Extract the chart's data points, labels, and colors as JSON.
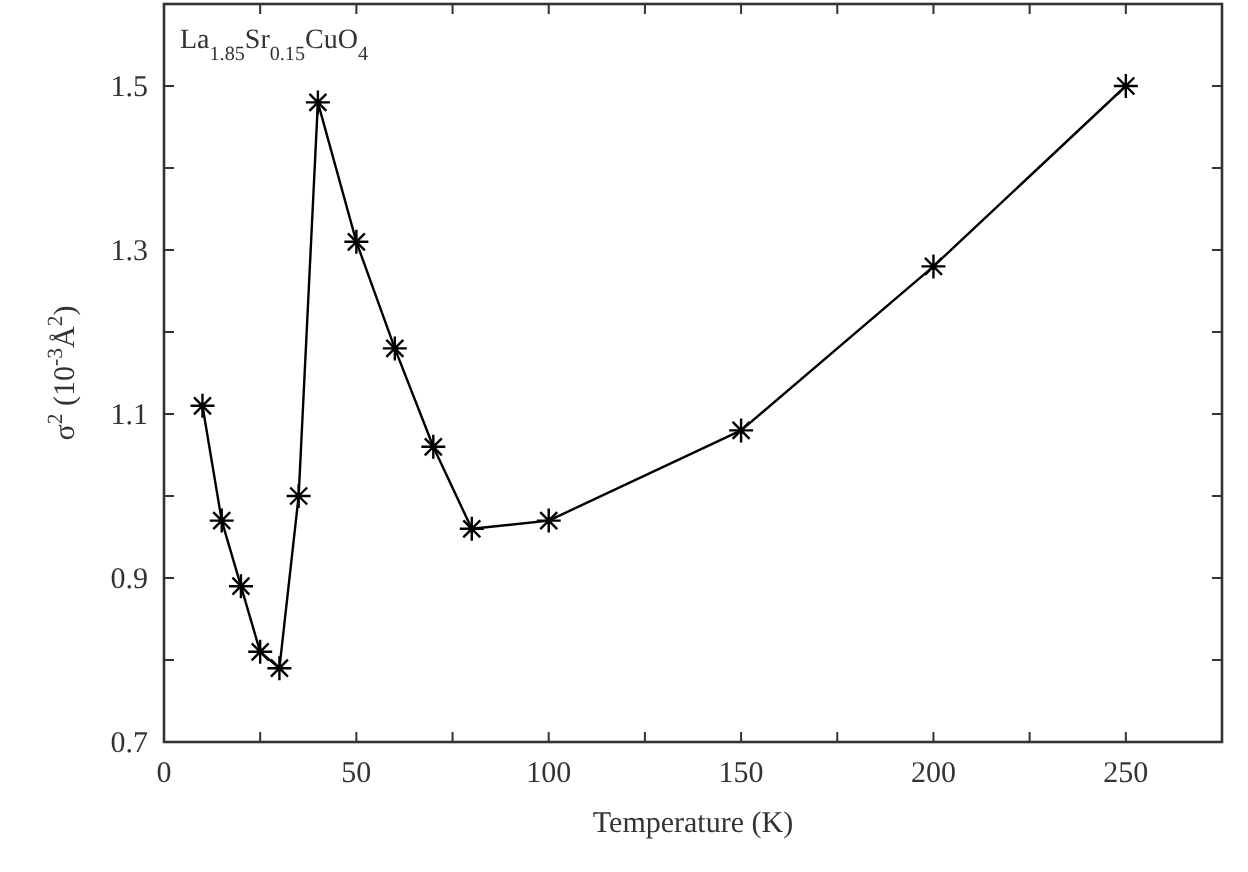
{
  "chart_data": {
    "type": "line",
    "xlabel": "Temperature (K)",
    "ylabel": "σ$^{2}$ (10$^{-3}$Å$^{2}$)",
    "annotations": [
      "La$_{1.85}$Sr$_{0.15}$CuO$_{4}$"
    ],
    "x": [
      10,
      15,
      20,
      25,
      30,
      35,
      40,
      50,
      60,
      70,
      80,
      100,
      150,
      200,
      250
    ],
    "series": [
      {
        "color": "#000000",
        "values": [
          1.11,
          0.97,
          0.89,
          0.81,
          0.79,
          1.0,
          1.48,
          1.31,
          1.18,
          1.06,
          0.96,
          0.97,
          1.08,
          1.28,
          1.5
        ]
      }
    ],
    "xlim": [
      0,
      275
    ],
    "xticks": [
      0,
      {
        "value": 25,
        "label": null
      },
      50,
      {
        "value": 75,
        "label": null
      },
      100,
      {
        "value": 125,
        "label": null
      },
      150,
      {
        "value": 175,
        "label": null
      },
      200,
      {
        "value": 225,
        "label": null
      },
      250
    ],
    "ylim": [
      0.7,
      1.6
    ],
    "yticks": [
      0.7,
      {
        "value": 0.8,
        "label": null
      },
      0.9,
      {
        "value": 1.0,
        "label": null
      },
      1.1,
      {
        "value": 1.2,
        "label": null
      },
      1.3,
      {
        "value": 1.4,
        "label": null
      },
      1.5
    ],
    "marker": "cross",
    "line_style": "solid",
    "grid": false
  }
}
